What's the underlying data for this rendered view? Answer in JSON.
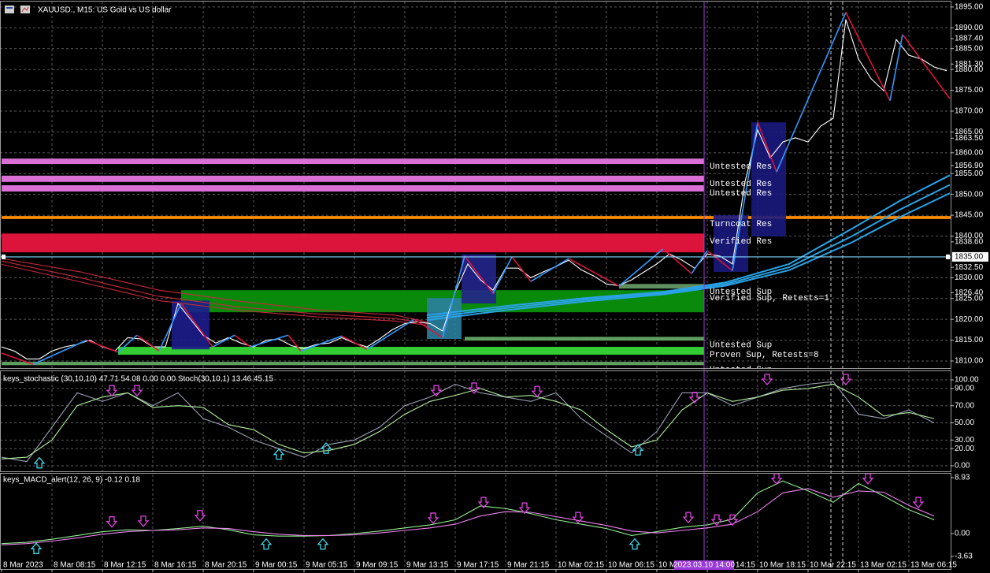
{
  "chart_data": [
    {
      "type": "line",
      "title": "XAUUSD., M15: US Gold vs US dollar",
      "xlim": [
        0,
        301.25
      ],
      "ylim": [
        1808.3,
        1896.3
      ],
      "grid": true,
      "yticks": [
        {
          "value": 1895,
          "label": "1895.00"
        },
        {
          "value": 1890,
          "label": "1890.00"
        },
        {
          "value": 1885,
          "label": "1885.00"
        },
        {
          "value": 1880,
          "label": "1880.00"
        },
        {
          "value": 1875,
          "label": "1875.00"
        },
        {
          "value": 1870,
          "label": "1870.00"
        },
        {
          "value": 1865,
          "label": "1865.00"
        },
        {
          "value": 1860,
          "label": "1860.00"
        },
        {
          "value": 1855,
          "label": "1855.00"
        },
        {
          "value": 1850,
          "label": "1850.00"
        },
        {
          "value": 1845,
          "label": "1845.00"
        },
        {
          "value": 1840,
          "label": "1840.00"
        },
        {
          "value": 1830,
          "label": "1830.00"
        },
        {
          "value": 1825,
          "label": "1825.00"
        },
        {
          "value": 1820,
          "label": "1820.00"
        },
        {
          "value": 1815,
          "label": "1815.00"
        },
        {
          "value": 1810,
          "label": "1810.00"
        }
      ],
      "level_labels": [
        {
          "value": 1887.4,
          "label": "1887.40"
        },
        {
          "value": 1881.3,
          "label": "1881.30"
        },
        {
          "value": 1863.5,
          "label": "1863.50"
        },
        {
          "value": 1856.9,
          "label": "1856.90"
        },
        {
          "value": 1838.6,
          "label": "1838.60"
        },
        {
          "value": 1832.5,
          "label": "1832.50"
        },
        {
          "value": 1826.4,
          "label": "1826.40"
        }
      ],
      "price_line": {
        "value": 1835,
        "label": "1835.00",
        "color": "#7fd8ff"
      },
      "xticks": [
        {
          "value": 0,
          "label": "8 Mar 2023"
        },
        {
          "value": 16,
          "label": "8 Mar 08:15"
        },
        {
          "value": 32,
          "label": "8 Mar 12:15"
        },
        {
          "value": 48,
          "label": "8 Mar 16:15"
        },
        {
          "value": 64,
          "label": "8 Mar 20:15"
        },
        {
          "value": 80,
          "label": "9 Mar 00:15"
        },
        {
          "value": 96,
          "label": "9 Mar 05:15"
        },
        {
          "value": 112,
          "label": "9 Mar 09:15"
        },
        {
          "value": 128,
          "label": "9 Mar 13:15"
        },
        {
          "value": 144,
          "label": "9 Mar 17:15"
        },
        {
          "value": 160,
          "label": "9 Mar 21:15"
        },
        {
          "value": 176,
          "label": "10 Mar 02:15"
        },
        {
          "value": 192,
          "label": "10 Mar 06:15"
        },
        {
          "value": 208,
          "label": "10 Mar 10:15"
        },
        {
          "value": 224,
          "label": "10 Mar 14:15"
        },
        {
          "value": 240,
          "label": "10 Mar 18:15"
        },
        {
          "value": 256,
          "label": "10 Mar 22:15"
        },
        {
          "value": 272,
          "label": "13 Mar 02:15"
        },
        {
          "value": 288,
          "label": "13 Mar 06:15"
        }
      ],
      "cursor": {
        "value": 223,
        "label": "2023.03.10 14:00",
        "color": "#9b3bd6"
      },
      "zones": [
        {
          "label": "Untested Res",
          "from": 1857.3,
          "to": 1858.6,
          "x": [
            0,
            223
          ],
          "color": "#da70d6"
        },
        {
          "label": "Untested Res",
          "from": 1853.0,
          "to": 1854.5,
          "x": [
            0,
            223
          ],
          "color": "#da70d6"
        },
        {
          "label": "Untested Res",
          "from": 1850.7,
          "to": 1852.2,
          "x": [
            0,
            223
          ],
          "color": "#da70d6"
        },
        {
          "label": "Turncoat Res",
          "from": 1844.1,
          "to": 1844.8,
          "x": [
            0,
            301.25
          ],
          "color": "#ff8c00"
        },
        {
          "label": "Verified Res",
          "from": 1836.1,
          "to": 1840.6,
          "x": [
            0,
            223
          ],
          "color": "#dc143c"
        },
        {
          "label": "Untested Sup",
          "from": 1827.4,
          "to": 1828.5,
          "x": [
            196,
            223
          ],
          "color": "#5f8f5f"
        },
        {
          "label": "Verified Sup, Retests=1",
          "from": 1821.7,
          "to": 1827.0,
          "x": [
            57,
            223
          ],
          "color": "#0a8a0a"
        },
        {
          "label": "Untested Sup",
          "from": 1814.9,
          "to": 1815.8,
          "x": [
            147,
            223
          ],
          "color": "#5f9f5f"
        },
        {
          "label": "Proven Sup, Retests=8",
          "from": 1811.5,
          "to": 1813.4,
          "x": [
            37,
            223
          ],
          "color": "#32cd32"
        },
        {
          "label": "Untested Sup",
          "from": 1809.0,
          "to": 1809.8,
          "x": [
            0,
            223
          ],
          "color": "#5f9f5f"
        }
      ],
      "boxes": [
        {
          "x": [
            54,
            66
          ],
          "range": [
            1812.8,
            1824.5
          ],
          "color": "#1c1c8c"
        },
        {
          "x": [
            135,
            146
          ],
          "range": [
            1815.3,
            1825.1
          ],
          "color": "#2a7f9f"
        },
        {
          "x": [
            146,
            157
          ],
          "range": [
            1823.8,
            1835.6
          ],
          "color": "#24248c"
        },
        {
          "x": [
            226,
            237
          ],
          "range": [
            1831.4,
            1845.0
          ],
          "color": "#1a1a7e"
        },
        {
          "x": [
            238,
            249
          ],
          "range": [
            1839.9,
            1867.3
          ],
          "color": "#1a1a7e"
        }
      ],
      "series": [
        {
          "color": "#c8283c",
          "x": [
            0,
            25,
            50,
            75,
            100,
            125,
            135
          ],
          "values": [
            1834.6,
            1831.4,
            1827.0,
            1824.4,
            1822.3,
            1821.0,
            1819.4
          ]
        },
        {
          "color": "#c8283c",
          "x": [
            0,
            25,
            50,
            75,
            100,
            125,
            135
          ],
          "values": [
            1834.0,
            1830.0,
            1825.5,
            1823.0,
            1821.3,
            1820.2,
            1819.0
          ]
        },
        {
          "color": "#c8283c",
          "x": [
            0,
            25,
            50,
            75,
            100,
            125,
            135
          ],
          "values": [
            1833.2,
            1829.0,
            1824.5,
            1822.2,
            1820.6,
            1819.6,
            1818.6
          ]
        },
        {
          "color": "#29a3e6",
          "x": [
            135,
            160,
            185,
            210,
            230,
            250,
            270,
            285,
            301
          ],
          "values": [
            1821.0,
            1823.2,
            1825.1,
            1826.6,
            1828.9,
            1833.3,
            1841.8,
            1848.4,
            1854.6
          ]
        },
        {
          "color": "#29a3e6",
          "x": [
            135,
            160,
            185,
            210,
            230,
            250,
            270,
            285,
            301
          ],
          "values": [
            1820.4,
            1822.7,
            1824.7,
            1826.3,
            1828.5,
            1832.5,
            1840.0,
            1846.3,
            1852.3
          ]
        },
        {
          "color": "#29a3e6",
          "x": [
            135,
            160,
            185,
            210,
            230,
            250,
            270,
            285,
            301
          ],
          "values": [
            1819.8,
            1822.2,
            1824.3,
            1826.0,
            1828.1,
            1831.8,
            1838.5,
            1844.5,
            1850.3
          ]
        },
        {
          "color": "#ffffff",
          "x": [
            0,
            4,
            8,
            12,
            16,
            20,
            24,
            28,
            32,
            36,
            40,
            44,
            48,
            52,
            56,
            60,
            64,
            68,
            72,
            76,
            80,
            84,
            88,
            92,
            96,
            100,
            104,
            108,
            112,
            116,
            120,
            124,
            128,
            132,
            136,
            140,
            144,
            148,
            152,
            156,
            160,
            164,
            168,
            172,
            176,
            180,
            184,
            188,
            192,
            196,
            200,
            204,
            208,
            212,
            216,
            220,
            224,
            228,
            232,
            236,
            240,
            244,
            248,
            252,
            256,
            260,
            264,
            268,
            272,
            276,
            280,
            284,
            288,
            292,
            296,
            300
          ],
          "values": [
            1813.4,
            1812.4,
            1810.5,
            1810.5,
            1812.4,
            1813.4,
            1814,
            1815,
            1813.4,
            1812.4,
            1815.6,
            1815.3,
            1813.4,
            1813.4,
            1823.8,
            1820,
            1816.2,
            1814.3,
            1815.6,
            1814.3,
            1813.4,
            1815,
            1815.3,
            1813.7,
            1813,
            1814,
            1814.3,
            1815.6,
            1814.3,
            1813.4,
            1815.3,
            1817.5,
            1819,
            1819.4,
            1819,
            1817.2,
            1826.6,
            1833.3,
            1829.5,
            1827,
            1832.3,
            1832.3,
            1830,
            1831.4,
            1832.7,
            1834.2,
            1831.9,
            1830.4,
            1828.5,
            1828.1,
            1829.5,
            1831.4,
            1833.3,
            1835.7,
            1834.2,
            1832.3,
            1835.7,
            1835.2,
            1833.3,
            1853.1,
            1865.5,
            1858.8,
            1862.6,
            1863.6,
            1862.6,
            1866.4,
            1868.3,
            1892,
            1882.5,
            1877.8,
            1874.9,
            1887.2,
            1883.4,
            1882.5,
            1880.6,
            1879.7
          ]
        }
      ],
      "zigzag": {
        "up_color": "#3399ff",
        "down_color": "#dc143c",
        "x": [
          0,
          10,
          27,
          37,
          43,
          50,
          57,
          67,
          74,
          79,
          91,
          95,
          108,
          116,
          131,
          140,
          147,
          156,
          162,
          168,
          180,
          196,
          210,
          219,
          224,
          232,
          240,
          246,
          268,
          282,
          286,
          301
        ],
        "values": [
          1811.9,
          1809.2,
          1815,
          1812.1,
          1816.2,
          1812.4,
          1823.8,
          1813.4,
          1816.2,
          1813.4,
          1816.2,
          1812.4,
          1816,
          1812.8,
          1820,
          1815.6,
          1835.2,
          1826.2,
          1835,
          1829.1,
          1834.6,
          1828,
          1836.9,
          1831,
          1836.5,
          1831.7,
          1867.3,
          1855.4,
          1893.7,
          1872.5,
          1888.4,
          1873
        ]
      }
    },
    {
      "type": "line",
      "title": "keys_stochastic (30,10,10) 47.71 54.08 0.00 0.00 Stoch(30,10,1) 13.46 45.15",
      "ylim": [
        -6.4,
        109.2
      ],
      "grid": true,
      "yticks": [
        {
          "value": 100,
          "label": "100.00"
        },
        {
          "value": 90,
          "label": "90.00"
        },
        {
          "value": 70,
          "label": "70.00"
        },
        {
          "value": 50,
          "label": "50.00"
        },
        {
          "value": 30,
          "label": "30.00"
        },
        {
          "value": 20,
          "label": "20.00"
        },
        {
          "value": 0,
          "label": "0.00"
        }
      ],
      "x": [
        0,
        8,
        16,
        24,
        32,
        40,
        48,
        56,
        64,
        72,
        80,
        88,
        96,
        104,
        112,
        120,
        128,
        136,
        144,
        152,
        160,
        168,
        176,
        184,
        192,
        200,
        208,
        216,
        224,
        232,
        240,
        248,
        256,
        264,
        272,
        280,
        288,
        296
      ],
      "series": [
        {
          "color": "#9aa0b4",
          "values": [
            10,
            5,
            45,
            85,
            75,
            85,
            70,
            85,
            55,
            45,
            30,
            20,
            10,
            25,
            30,
            45,
            70,
            80,
            95,
            85,
            80,
            75,
            85,
            55,
            35,
            15,
            40,
            85,
            85,
            70,
            80,
            90,
            95,
            98,
            60,
            55,
            65,
            50
          ]
        },
        {
          "color": "#b4f0a0",
          "values": [
            8,
            10,
            30,
            70,
            80,
            85,
            68,
            70,
            68,
            48,
            42,
            25,
            15,
            18,
            25,
            40,
            60,
            75,
            82,
            90,
            80,
            82,
            75,
            65,
            42,
            22,
            30,
            65,
            85,
            75,
            80,
            88,
            90,
            95,
            80,
            58,
            62,
            55
          ]
        }
      ],
      "arrows_down": {
        "color": "#e040e0",
        "x": [
          35,
          43,
          138,
          150,
          170,
          220,
          243,
          268
        ],
        "values": [
          87,
          87,
          87,
          90,
          86,
          79,
          100,
          100
        ]
      },
      "arrows_up": {
        "color": "#40d8e8",
        "x": [
          12,
          88,
          103,
          202
        ],
        "values": [
          4,
          14,
          21,
          19
        ]
      }
    },
    {
      "type": "line",
      "title": "keys_MACD_alert(12, 26, 9) -0.12 0.18",
      "ylim": [
        -5.66,
        9.56
      ],
      "grid": false,
      "yticks": [
        {
          "value": 8.93,
          "label": "8.93"
        },
        {
          "value": 0,
          "label": "0.00"
        },
        {
          "value": -3.63,
          "label": "-3.63"
        }
      ],
      "x": [
        0,
        8,
        16,
        24,
        32,
        40,
        48,
        56,
        64,
        72,
        80,
        88,
        96,
        104,
        112,
        120,
        128,
        136,
        144,
        152,
        160,
        168,
        176,
        184,
        192,
        200,
        208,
        216,
        224,
        232,
        240,
        248,
        256,
        264,
        272,
        280,
        288,
        296
      ],
      "series": [
        {
          "color": "#90ee90",
          "values": [
            -1.6,
            -1.4,
            -0.9,
            -0.3,
            0.3,
            0.6,
            0.5,
            0.8,
            1.2,
            0.6,
            -0.2,
            -0.4,
            -0.4,
            -0.3,
            0,
            0.4,
            0.9,
            1.4,
            2.2,
            4.4,
            4.0,
            3.2,
            2.2,
            1.5,
            0.8,
            -0.3,
            0.3,
            1.0,
            1.4,
            2.3,
            6.5,
            8.4,
            6.8,
            5.0,
            8.0,
            6.0,
            3.8,
            2.2
          ]
        },
        {
          "color": "#ee82ee",
          "values": [
            -1.8,
            -1.6,
            -1.2,
            -0.7,
            -0.1,
            0.3,
            0.5,
            0.6,
            0.9,
            0.8,
            0.3,
            -0.1,
            -0.3,
            -0.3,
            -0.2,
            0.1,
            0.5,
            0.9,
            1.5,
            2.8,
            3.5,
            3.4,
            2.7,
            2.0,
            1.3,
            0.4,
            0.1,
            0.5,
            0.9,
            1.5,
            3.5,
            6.5,
            7.2,
            5.8,
            6.8,
            6.6,
            4.5,
            2.8
          ]
        }
      ],
      "arrows_down": {
        "color": "#e040e0",
        "x": [
          35,
          45,
          63,
          137,
          153,
          166,
          183,
          218,
          227,
          232,
          246,
          275,
          291
        ],
        "values": [
          1.8,
          1.9,
          2.8,
          2.4,
          4.9,
          4.0,
          2.5,
          2.5,
          2.1,
          2.1,
          8.7,
          8.7,
          4.9
        ]
      },
      "arrows_up": {
        "color": "#40d8e8",
        "x": [
          11,
          84,
          102,
          201
        ],
        "values": [
          -2.3,
          -1.6,
          -1.6,
          -1.6
        ]
      }
    }
  ]
}
